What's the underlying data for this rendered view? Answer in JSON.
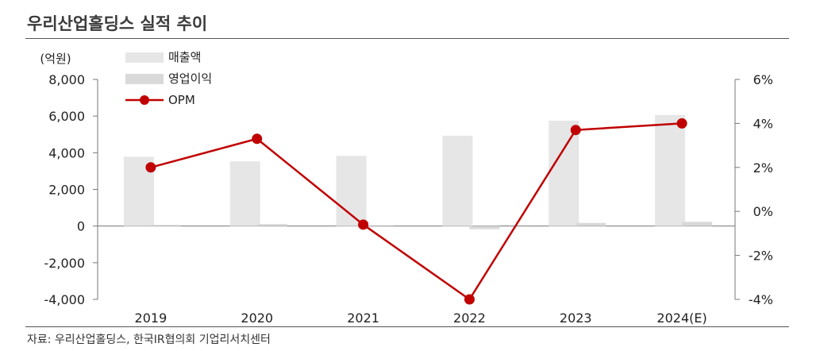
{
  "title": "우리산업홀딩스 실적 추이",
  "source": "자료: 우리산업홀딩스, 한국IR협의회 기업리서치센터",
  "chart_data": {
    "type": "bar",
    "categories": [
      "2019",
      "2020",
      "2021",
      "2022",
      "2023",
      "2024(E)"
    ],
    "series": [
      {
        "name": "매출액",
        "kind": "bar",
        "axis": "left",
        "color": "#e6e6e6",
        "values": [
          3780,
          3530,
          3830,
          4930,
          5750,
          6060
        ]
      },
      {
        "name": "영업이익",
        "kind": "bar",
        "axis": "left",
        "color": "#d9d9d9",
        "values": [
          60,
          110,
          -20,
          -170,
          170,
          230
        ]
      },
      {
        "name": "OPM",
        "kind": "line",
        "axis": "right",
        "color": "#c00000",
        "values": [
          2.0,
          3.3,
          -0.6,
          -4.0,
          3.7,
          4.0
        ]
      }
    ],
    "ylabel": "(억원)",
    "ylim": [
      -4000,
      8000
    ],
    "yticks": [
      "8,000",
      "6,000",
      "4,000",
      "2,000",
      "0",
      "-2,000",
      "-4,000"
    ],
    "y2lim": [
      -4,
      6
    ],
    "y2ticks": [
      "6%",
      "4%",
      "2%",
      "0%",
      "-2%",
      "-4%"
    ],
    "legend": "top-left",
    "grid": false
  }
}
